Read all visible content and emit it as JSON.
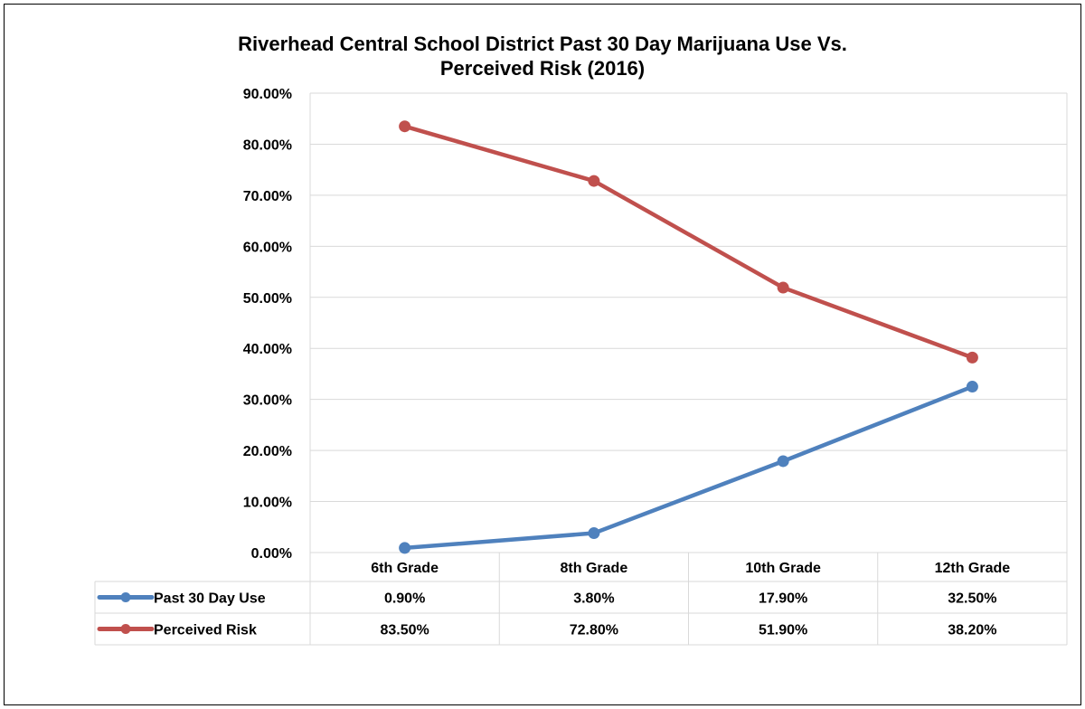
{
  "chart_data": {
    "type": "line",
    "title_line1": "Riverhead Central School District Past 30 Day Marijuana Use Vs.",
    "title_line2": "Perceived Risk (2016)",
    "categories": [
      "6th Grade",
      "8th Grade",
      "10th Grade",
      "12th Grade"
    ],
    "series": [
      {
        "name": "Past 30 Day Use",
        "color": "#4f81bd",
        "values": [
          0.9,
          3.8,
          17.9,
          32.5
        ],
        "labels": [
          "0.90%",
          "3.80%",
          "17.90%",
          "32.50%"
        ]
      },
      {
        "name": "Perceived Risk",
        "color": "#c0504d",
        "values": [
          83.5,
          72.8,
          51.9,
          38.2
        ],
        "labels": [
          "83.50%",
          "72.80%",
          "51.90%",
          "38.20%"
        ]
      }
    ],
    "ylim": [
      0,
      90
    ],
    "yticks": [
      "0.00%",
      "10.00%",
      "20.00%",
      "30.00%",
      "40.00%",
      "50.00%",
      "60.00%",
      "70.00%",
      "80.00%",
      "90.00%"
    ],
    "grid": true,
    "legend": "data-table"
  }
}
